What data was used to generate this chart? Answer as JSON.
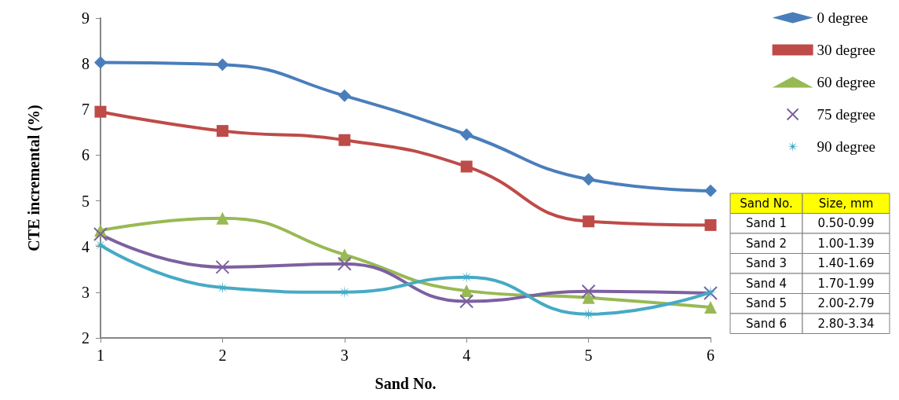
{
  "chart_data": {
    "type": "line",
    "xlabel": "Sand No.",
    "ylabel": "CTE incremental (%)",
    "categories": [
      "1",
      "2",
      "3",
      "4",
      "5",
      "6"
    ],
    "series": [
      {
        "name": "0 degree",
        "color": "#4a7ebb",
        "marker": "diamond",
        "values": [
          8.03,
          7.98,
          7.3,
          6.45,
          5.47,
          5.22
        ]
      },
      {
        "name": "30 degree",
        "color": "#be4b48",
        "marker": "square",
        "values": [
          6.95,
          6.53,
          6.33,
          5.75,
          4.55,
          4.47
        ]
      },
      {
        "name": "60 degree",
        "color": "#98b954",
        "marker": "triangle",
        "values": [
          4.35,
          4.62,
          3.82,
          3.03,
          2.88,
          2.67
        ]
      },
      {
        "name": "75 degree",
        "color": "#7d60a0",
        "marker": "cross",
        "values": [
          4.27,
          3.55,
          3.62,
          2.8,
          3.02,
          2.98
        ]
      },
      {
        "name": "90 degree",
        "color": "#46aac5",
        "marker": "star",
        "values": [
          4.03,
          3.1,
          3.0,
          3.33,
          2.52,
          3.0
        ]
      }
    ],
    "ylim": [
      2,
      9
    ],
    "yticks": [
      2,
      3,
      4,
      5,
      6,
      7,
      8,
      9
    ],
    "grid": false,
    "legend": "top right",
    "line_style": "solid",
    "annotations": [
      "Sand No.",
      "Size, mm",
      "Sand 1",
      "0.50-0.99",
      "Sand 2",
      "1.00-1.39",
      "Sand 3",
      "1.40-1.69",
      "Sand 4",
      "1.70-1.99",
      "Sand 5",
      "2.00-2.79",
      "Sand 6",
      "2.80-3.34"
    ]
  }
}
